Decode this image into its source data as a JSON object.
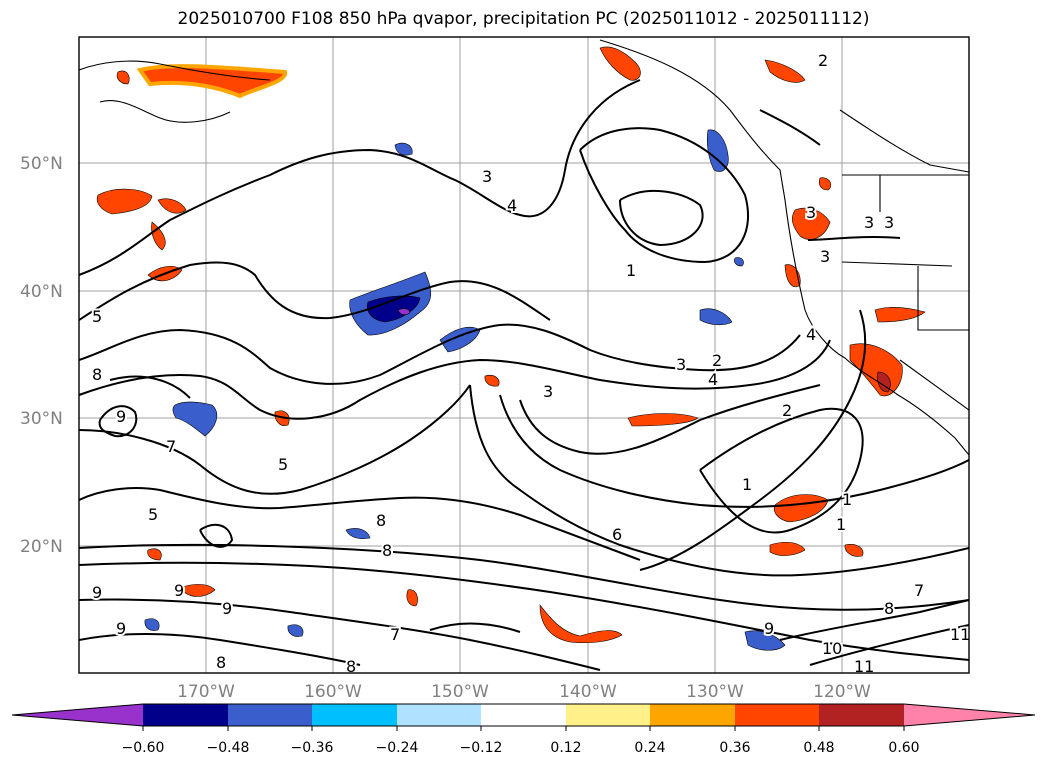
{
  "title": "2025010700 F108 850 hPa qvapor, precipitation PC (2025011012 - 2025011112)",
  "map": {
    "lat_labels": [
      "50°N",
      "40°N",
      "30°N",
      "20°N"
    ],
    "lon_labels": [
      "170°W",
      "160°W",
      "150°W",
      "140°W",
      "130°W",
      "120°W"
    ],
    "contour_labels": [
      "2",
      "3",
      "3",
      "4",
      "5",
      "8",
      "9",
      "7",
      "5",
      "5",
      "8",
      "8",
      "9",
      "9",
      "9",
      "9",
      "7",
      "8",
      "8",
      "1",
      "3",
      "2",
      "4",
      "3",
      "2",
      "1",
      "1",
      "1",
      "6",
      "7",
      "8",
      "10",
      "11",
      "11",
      "9",
      "3",
      "3",
      "3",
      "4"
    ]
  },
  "colorbar": {
    "ticks": [
      "−0.60",
      "−0.48",
      "−0.36",
      "−0.24",
      "−0.12",
      "0.12",
      "0.24",
      "0.36",
      "0.48",
      "0.60"
    ],
    "colors": [
      "#9932cc",
      "#00008b",
      "#3a5fcd",
      "#00bfff",
      "#b0e2ff",
      "#ffffff",
      "#fff08a",
      "#ffa500",
      "#ff4500",
      "#b22222",
      "#ff82ab"
    ]
  }
}
